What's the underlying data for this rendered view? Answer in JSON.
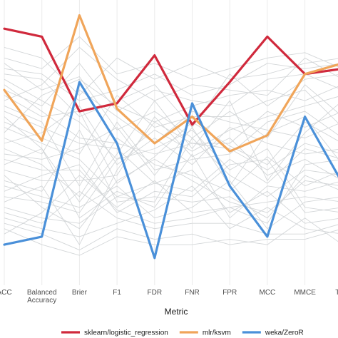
{
  "chart_data": {
    "type": "line",
    "xlabel": "Metric",
    "categories": [
      "ACC",
      "Balanced\nAccuracy",
      "Brier",
      "F1",
      "FDR",
      "FNR",
      "FPR",
      "MCC",
      "MMCE",
      "TPR"
    ],
    "ylim": [
      0,
      1
    ],
    "grid": "vertical only",
    "legend": "bottom",
    "background_series_color": "#d3d6d8",
    "background_series": [
      [
        0.8,
        0.7,
        0.75,
        0.55,
        0.62,
        0.52,
        0.62,
        0.52,
        0.72,
        0.6
      ],
      [
        0.74,
        0.66,
        0.58,
        0.44,
        0.55,
        0.47,
        0.55,
        0.6,
        0.64,
        0.68
      ],
      [
        0.68,
        0.6,
        0.62,
        0.35,
        0.45,
        0.58,
        0.49,
        0.42,
        0.58,
        0.5
      ],
      [
        0.62,
        0.56,
        0.5,
        0.48,
        0.35,
        0.32,
        0.44,
        0.35,
        0.48,
        0.44
      ],
      [
        0.56,
        0.5,
        0.44,
        0.3,
        0.28,
        0.52,
        0.38,
        0.3,
        0.4,
        0.38
      ],
      [
        0.52,
        0.46,
        0.7,
        0.6,
        0.5,
        0.62,
        0.58,
        0.55,
        0.52,
        0.58
      ],
      [
        0.48,
        0.42,
        0.3,
        0.52,
        0.42,
        0.38,
        0.32,
        0.45,
        0.34,
        0.4
      ],
      [
        0.44,
        0.4,
        0.4,
        0.25,
        0.2,
        0.22,
        0.26,
        0.28,
        0.3,
        0.28
      ],
      [
        0.4,
        0.36,
        0.36,
        0.38,
        0.6,
        0.45,
        0.52,
        0.38,
        0.44,
        0.36
      ],
      [
        0.36,
        0.32,
        0.55,
        0.28,
        0.3,
        0.28,
        0.3,
        0.22,
        0.38,
        0.32
      ],
      [
        0.3,
        0.28,
        0.24,
        0.44,
        0.48,
        0.55,
        0.4,
        0.48,
        0.26,
        0.24
      ],
      [
        0.26,
        0.22,
        0.2,
        0.3,
        0.35,
        0.4,
        0.24,
        0.32,
        0.2,
        0.22
      ],
      [
        0.22,
        0.18,
        0.15,
        0.2,
        0.25,
        0.34,
        0.18,
        0.26,
        0.18,
        0.16
      ],
      [
        0.18,
        0.12,
        0.08,
        0.15,
        0.12,
        0.12,
        0.14,
        0.12,
        0.22,
        0.12
      ],
      [
        0.66,
        0.72,
        0.86,
        0.74,
        0.66,
        0.72,
        0.7,
        0.68,
        0.82,
        0.74
      ],
      [
        0.7,
        0.64,
        0.8,
        0.62,
        0.7,
        0.66,
        0.64,
        0.74,
        0.76,
        0.7
      ],
      [
        0.58,
        0.52,
        0.46,
        0.68,
        0.56,
        0.6,
        0.6,
        0.66,
        0.7,
        0.56
      ],
      [
        0.64,
        0.58,
        0.34,
        0.58,
        0.4,
        0.44,
        0.46,
        0.58,
        0.62,
        0.52
      ],
      [
        0.34,
        0.3,
        0.26,
        0.34,
        0.22,
        0.26,
        0.36,
        0.18,
        0.28,
        0.3
      ],
      [
        0.28,
        0.34,
        0.12,
        0.4,
        0.58,
        0.5,
        0.48,
        0.4,
        0.5,
        0.46
      ],
      [
        0.78,
        0.76,
        0.66,
        0.7,
        0.76,
        0.68,
        0.72,
        0.8,
        0.78,
        0.8
      ],
      [
        0.72,
        0.62,
        0.52,
        0.5,
        0.46,
        0.5,
        0.5,
        0.62,
        0.56,
        0.62
      ],
      [
        0.5,
        0.54,
        0.64,
        0.42,
        0.52,
        0.42,
        0.56,
        0.5,
        0.46,
        0.48
      ],
      [
        0.46,
        0.44,
        0.48,
        0.56,
        0.38,
        0.56,
        0.34,
        0.54,
        0.6,
        0.42
      ],
      [
        0.6,
        0.48,
        0.28,
        0.46,
        0.66,
        0.48,
        0.66,
        0.36,
        0.54,
        0.66
      ],
      [
        0.38,
        0.26,
        0.18,
        0.36,
        0.44,
        0.36,
        0.28,
        0.24,
        0.36,
        0.34
      ],
      [
        0.54,
        0.68,
        0.74,
        0.64,
        0.58,
        0.64,
        0.68,
        0.7,
        0.66,
        0.72
      ],
      [
        0.32,
        0.38,
        0.42,
        0.24,
        0.32,
        0.3,
        0.42,
        0.44,
        0.24,
        0.26
      ],
      [
        0.76,
        0.74,
        0.6,
        0.66,
        0.72,
        0.56,
        0.76,
        0.64,
        0.74,
        0.76
      ],
      [
        0.42,
        0.48,
        0.22,
        0.32,
        0.26,
        0.46,
        0.22,
        0.34,
        0.32,
        0.36
      ],
      [
        0.24,
        0.2,
        0.32,
        0.22,
        0.18,
        0.2,
        0.2,
        0.16,
        0.16,
        0.2
      ],
      [
        0.2,
        0.16,
        0.1,
        0.18,
        0.14,
        0.16,
        0.12,
        0.14,
        0.14,
        0.18
      ],
      [
        0.82,
        0.78,
        0.9,
        0.76,
        0.8,
        0.74,
        0.78,
        0.82,
        0.84,
        0.78
      ],
      [
        0.16,
        0.24,
        0.38,
        0.26,
        0.36,
        0.24,
        0.26,
        0.2,
        0.42,
        0.44
      ],
      [
        0.86,
        0.82,
        0.68,
        0.82,
        0.74,
        0.8,
        0.74,
        0.76,
        0.8,
        0.82
      ]
    ],
    "series": [
      {
        "name": "sklearn/logistic_regression",
        "color": "#d0293c",
        "values": [
          0.93,
          0.9,
          0.62,
          0.65,
          0.83,
          0.57,
          0.73,
          0.9,
          0.76,
          0.78
        ]
      },
      {
        "name": "mlr/ksvm",
        "color": "#f0a55a",
        "values": [
          0.7,
          0.51,
          0.98,
          0.63,
          0.5,
          0.6,
          0.47,
          0.53,
          0.76,
          0.8
        ]
      },
      {
        "name": "weka/ZeroR",
        "color": "#4a90d9",
        "values": [
          0.12,
          0.15,
          0.73,
          0.5,
          0.07,
          0.65,
          0.34,
          0.15,
          0.6,
          0.35
        ]
      }
    ]
  }
}
